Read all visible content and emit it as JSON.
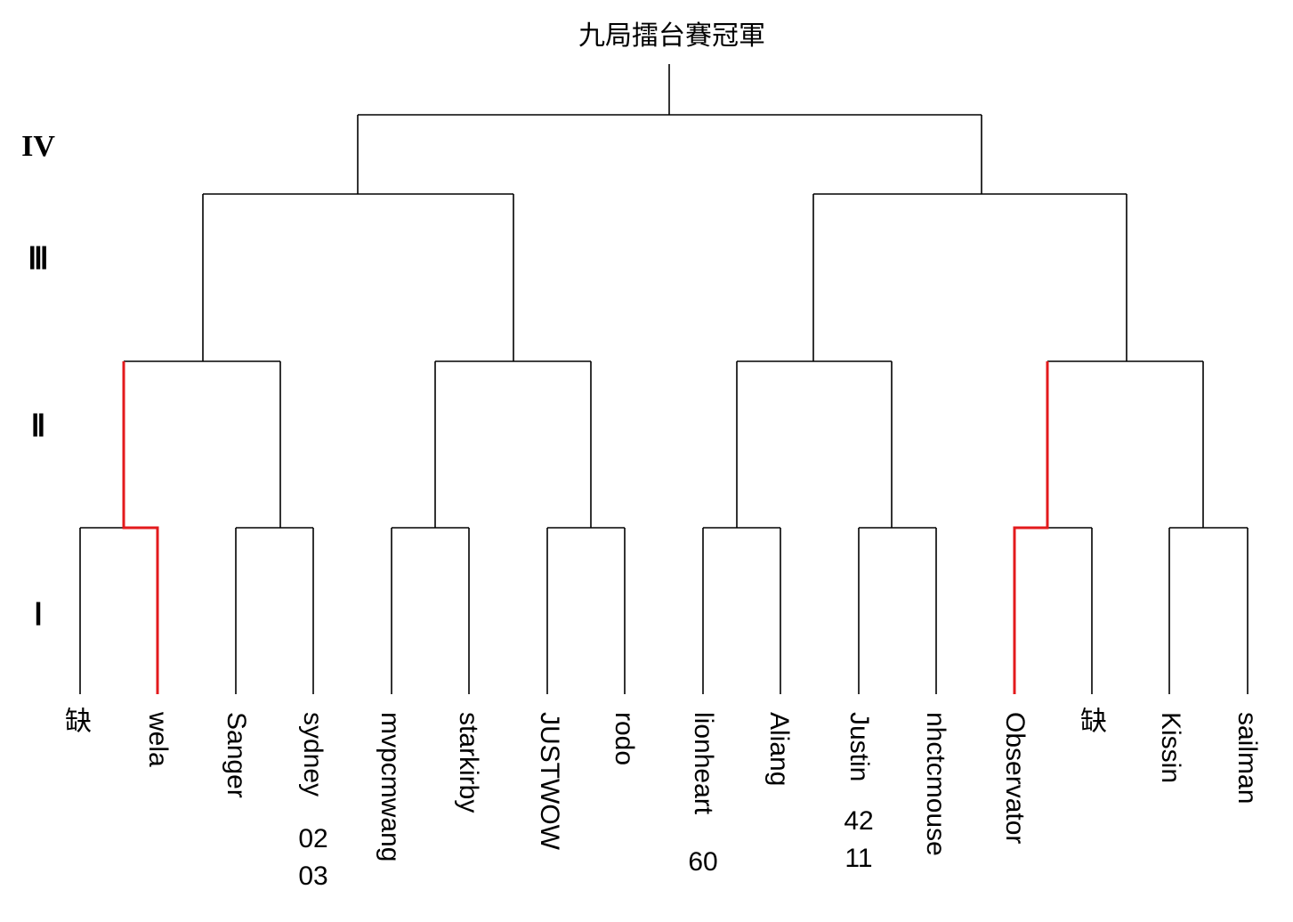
{
  "title": "九局擂台賽冠軍",
  "rounds": [
    "IV",
    "Ⅲ",
    "Ⅱ",
    "Ⅰ"
  ],
  "players": [
    {
      "line1": "缺",
      "line2": ""
    },
    {
      "line1": "wela",
      "line2": ""
    },
    {
      "line1": "Sanger",
      "line2": ""
    },
    {
      "line1": "sydney",
      "line2": "02 03"
    },
    {
      "line1": "mvpcmwang",
      "line2": ""
    },
    {
      "line1": "starkirby",
      "line2": ""
    },
    {
      "line1": "JUSTWOW",
      "line2": ""
    },
    {
      "line1": "rodo",
      "line2": ""
    },
    {
      "line1": "lionheart",
      "line2": "60"
    },
    {
      "line1": "Aliang",
      "line2": ""
    },
    {
      "line1": "Justin",
      "line2": "42 11"
    },
    {
      "line1": "nhctcmouse",
      "line2": ""
    },
    {
      "line1": "Observator",
      "line2": ""
    },
    {
      "line1": "缺",
      "line2": ""
    },
    {
      "line1": "Kissin",
      "line2": ""
    },
    {
      "line1": "sailman",
      "line2": ""
    }
  ],
  "highlight_color": "#e31a1c",
  "advanced": [
    "wela",
    "Observator"
  ]
}
